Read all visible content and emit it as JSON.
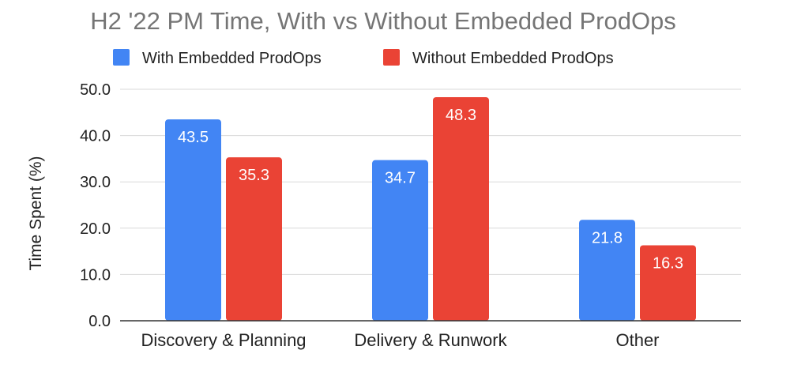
{
  "chart_data": {
    "type": "bar",
    "title": "H2 '22 PM Time, With vs Without Embedded ProdOps",
    "xlabel": "",
    "ylabel": "Time Spent (%)",
    "ylim": [
      0,
      50
    ],
    "yticks": [
      "0.0",
      "10.0",
      "20.0",
      "30.0",
      "40.0",
      "50.0"
    ],
    "grid": true,
    "legend_position": "top",
    "categories": [
      "Discovery & Planning",
      "Delivery & Runwork",
      "Other"
    ],
    "series": [
      {
        "name": "With Embedded ProdOps",
        "color": "#4285f4",
        "values": [
          43.5,
          34.7,
          21.8
        ],
        "labels": [
          "43.5",
          "34.7",
          "21.8"
        ]
      },
      {
        "name": "Without Embedded ProdOps",
        "color": "#ea4335",
        "values": [
          35.3,
          48.3,
          16.3
        ],
        "labels": [
          "35.3",
          "48.3",
          "16.3"
        ]
      }
    ]
  }
}
